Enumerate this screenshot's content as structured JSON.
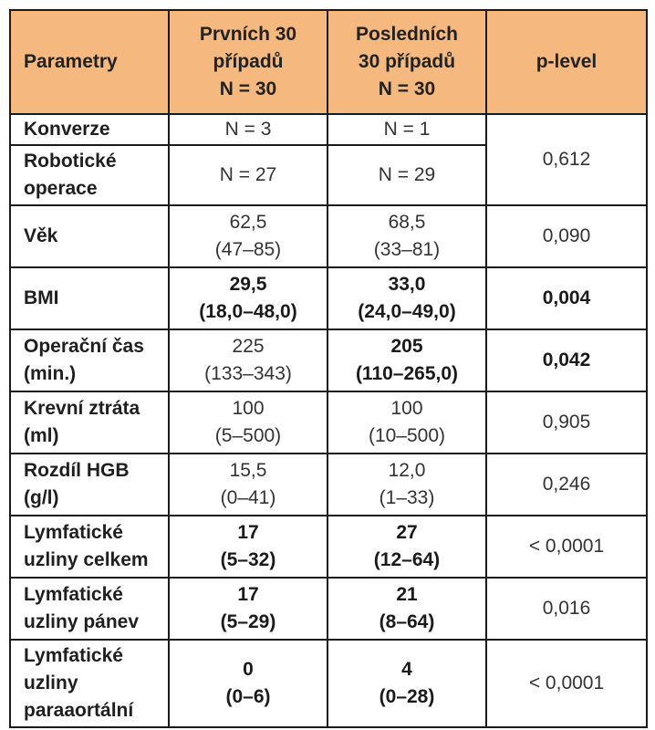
{
  "headers": {
    "col1": "Parametry",
    "col2": [
      "Prvních 30",
      "případů",
      "N = 30"
    ],
    "col3": [
      "Posledních",
      "30 případů",
      "N = 30"
    ],
    "col4": "p-level"
  },
  "rows": [
    {
      "label": [
        "Konverze"
      ],
      "first": [
        "N = 3"
      ],
      "last": [
        "N = 1"
      ]
    },
    {
      "label": [
        "Robotické",
        "operace"
      ],
      "first": [
        "N = 27"
      ],
      "last": [
        "N = 29"
      ]
    },
    {
      "label": [
        "Věk"
      ],
      "first": [
        "62,5",
        "(47–85)"
      ],
      "last": [
        "68,5",
        "(33–81)"
      ],
      "p": "0,090"
    },
    {
      "label": [
        "BMI"
      ],
      "first": [
        "29,5",
        "(18,0–48,0)"
      ],
      "last": [
        "33,0",
        "(24,0–49,0)"
      ],
      "p": "0,004"
    },
    {
      "label": [
        "Operační čas",
        "(min.)"
      ],
      "first": [
        "225",
        "(133–343)"
      ],
      "last": [
        "205",
        "(110–265,0)"
      ],
      "p": "0,042"
    },
    {
      "label": [
        "Krevní ztráta",
        "(ml)"
      ],
      "first": [
        "100",
        "(5–500)"
      ],
      "last": [
        "100",
        "(10–500)"
      ],
      "p": "0,905"
    },
    {
      "label": [
        "Rozdíl HGB",
        "(g/l)"
      ],
      "first": [
        "15,5",
        "(0–41)"
      ],
      "last": [
        "12,0",
        "(1–33)"
      ],
      "p": "0,246"
    },
    {
      "label": [
        "Lymfatické",
        "uzliny celkem"
      ],
      "first": [
        "17",
        "(5–32)"
      ],
      "last": [
        "27",
        "(12–64)"
      ],
      "p": "< 0,0001"
    },
    {
      "label": [
        "Lymfatické",
        "uzliny pánev"
      ],
      "first": [
        "17",
        "(5–29)"
      ],
      "last": [
        "21",
        "(8–64)"
      ],
      "p": "0,016"
    },
    {
      "label": [
        "Lymfatické",
        "uzliny",
        "paraaortální"
      ],
      "first": [
        "0",
        "(0–6)"
      ],
      "last": [
        "4",
        "(0–28)"
      ],
      "p": "< 0,0001"
    }
  ],
  "merged_p": "0,612",
  "colors": {
    "header_bg": "#f5b97f",
    "border": "#1a1a1a"
  }
}
